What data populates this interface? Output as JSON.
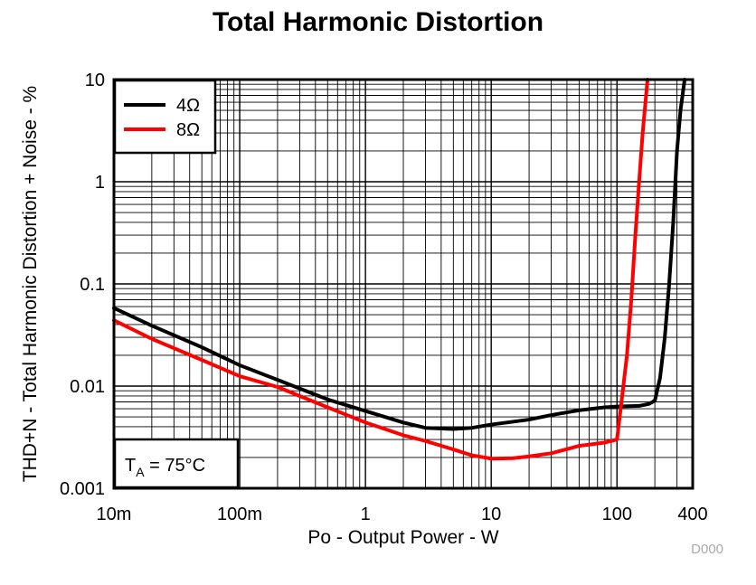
{
  "chart_data": {
    "type": "line",
    "title": "Total Harmonic Distortion",
    "xlabel": "Po - Output Power - W",
    "ylabel": "THD+N - Total Harmonic Distortion + Noise - %",
    "xscale": "log",
    "yscale": "log",
    "xlim": [
      0.01,
      400
    ],
    "ylim": [
      0.001,
      10
    ],
    "x_ticks": [
      {
        "value": 0.01,
        "label": "10m"
      },
      {
        "value": 0.1,
        "label": "100m"
      },
      {
        "value": 1,
        "label": "1"
      },
      {
        "value": 10,
        "label": "10"
      },
      {
        "value": 100,
        "label": "100"
      },
      {
        "value": 400,
        "label": "400"
      }
    ],
    "y_ticks": [
      {
        "value": 0.001,
        "label": "0.001"
      },
      {
        "value": 0.01,
        "label": "0.01"
      },
      {
        "value": 0.1,
        "label": "0.1"
      },
      {
        "value": 1,
        "label": "1"
      },
      {
        "value": 10,
        "label": "10"
      }
    ],
    "grid": true,
    "legend_position": "top-left",
    "annotation": "T_A = 75°C",
    "annotation_parts": {
      "base": "T",
      "sub": "A",
      "rest": " = 75°C"
    },
    "figure_id": "D000",
    "series": [
      {
        "name": "4Ω",
        "color": "#000000",
        "points": [
          [
            0.01,
            0.058
          ],
          [
            0.02,
            0.039
          ],
          [
            0.05,
            0.024
          ],
          [
            0.1,
            0.016
          ],
          [
            0.2,
            0.0115
          ],
          [
            0.5,
            0.0074
          ],
          [
            1,
            0.0057
          ],
          [
            2,
            0.0044
          ],
          [
            3,
            0.0039
          ],
          [
            5,
            0.0038
          ],
          [
            7,
            0.0039
          ],
          [
            10,
            0.0042
          ],
          [
            20,
            0.0047
          ],
          [
            30,
            0.0052
          ],
          [
            50,
            0.0058
          ],
          [
            80,
            0.0062
          ],
          [
            100,
            0.0063
          ],
          [
            150,
            0.0064
          ],
          [
            180,
            0.0067
          ],
          [
            200,
            0.0072
          ],
          [
            220,
            0.012
          ],
          [
            240,
            0.03
          ],
          [
            260,
            0.1
          ],
          [
            280,
            0.4
          ],
          [
            300,
            2
          ],
          [
            320,
            5
          ],
          [
            345,
            10
          ]
        ]
      },
      {
        "name": "8Ω",
        "color": "#ff0000",
        "points": [
          [
            0.01,
            0.044
          ],
          [
            0.02,
            0.029
          ],
          [
            0.05,
            0.018
          ],
          [
            0.1,
            0.0125
          ],
          [
            0.2,
            0.0098
          ],
          [
            0.5,
            0.0062
          ],
          [
            1,
            0.0044
          ],
          [
            2,
            0.0033
          ],
          [
            3,
            0.0029
          ],
          [
            5,
            0.0024
          ],
          [
            7,
            0.0021
          ],
          [
            10,
            0.00195
          ],
          [
            15,
            0.00197
          ],
          [
            20,
            0.00205
          ],
          [
            30,
            0.0022
          ],
          [
            50,
            0.0026
          ],
          [
            80,
            0.0028
          ],
          [
            100,
            0.003
          ],
          [
            110,
            0.008
          ],
          [
            120,
            0.02
          ],
          [
            130,
            0.07
          ],
          [
            140,
            0.3
          ],
          [
            150,
            1
          ],
          [
            160,
            3
          ],
          [
            175,
            10
          ]
        ]
      }
    ]
  }
}
